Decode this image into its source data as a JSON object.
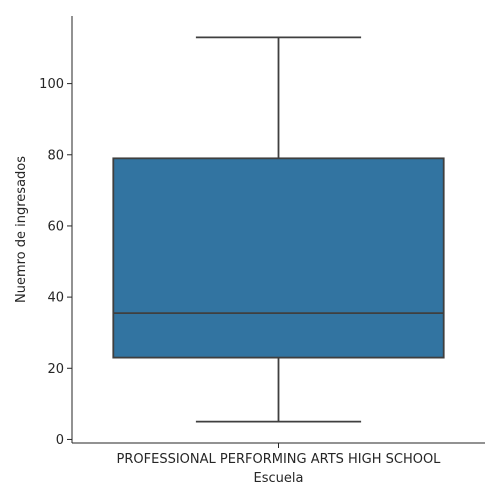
{
  "chart_data": {
    "type": "box",
    "title": "",
    "xlabel": "Escuela",
    "ylabel": "Nuemro de ingresados",
    "categories": [
      "PROFESSIONAL PERFORMING ARTS HIGH SCHOOL"
    ],
    "boxes": [
      {
        "category": "PROFESSIONAL PERFORMING ARTS HIGH SCHOOL",
        "whisker_low": 5,
        "q1": 23,
        "median": 35.5,
        "q3": 79,
        "whisker_high": 113
      }
    ],
    "ylim": [
      -1,
      119
    ],
    "yticks": [
      0,
      20,
      40,
      60,
      80,
      100
    ],
    "box_color": "#3274a1",
    "line_color": "#3f3f3f",
    "grid": false,
    "legend": "none"
  }
}
